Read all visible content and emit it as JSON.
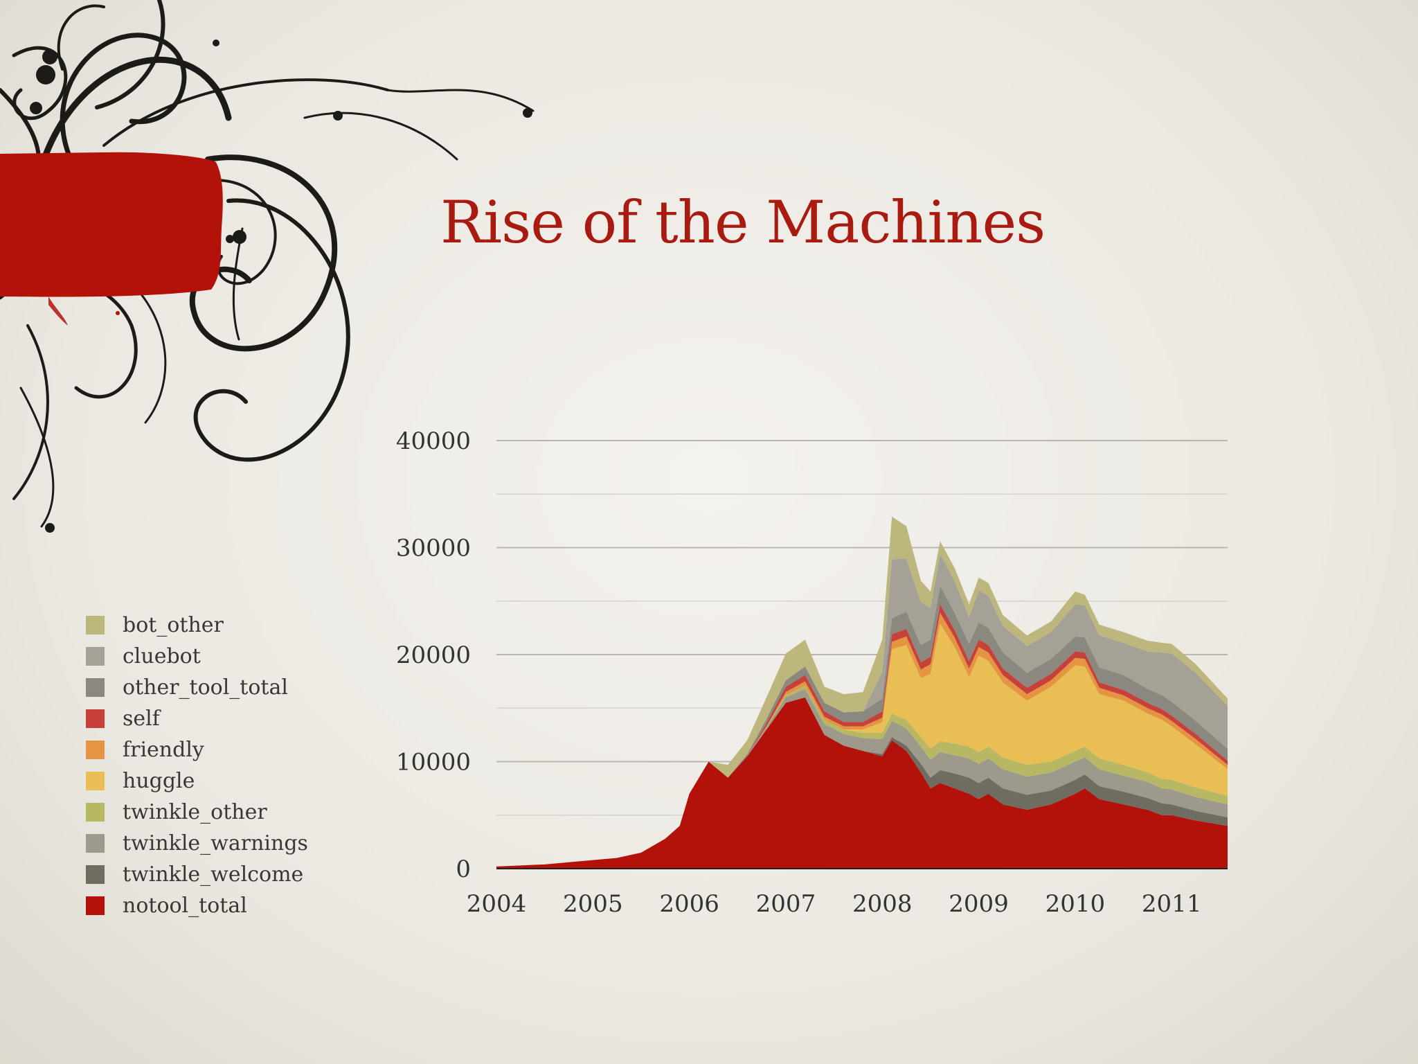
{
  "slide": {
    "title": "Rise of the Machines",
    "title_color": "#a91a10",
    "accent_color": "#b21209"
  },
  "legend": [
    {
      "label": "bot_other",
      "color": "#bdb77e"
    },
    {
      "label": "cluebot",
      "color": "#a5a196"
    },
    {
      "label": "other_tool_total",
      "color": "#8b887f"
    },
    {
      "label": "self",
      "color": "#c5413a"
    },
    {
      "label": "friendly",
      "color": "#e59442"
    },
    {
      "label": "huggle",
      "color": "#e9be55"
    },
    {
      "label": "twinkle_other",
      "color": "#b8b864"
    },
    {
      "label": "twinkle_warnings",
      "color": "#9d9a8c"
    },
    {
      "label": "twinkle_welcome",
      "color": "#6f6c62"
    },
    {
      "label": "notool_total",
      "color": "#b21209"
    }
  ],
  "chart_data": {
    "type": "area",
    "stacked": true,
    "title": "",
    "xlabel": "",
    "ylabel": "",
    "xlim": [
      2004.0,
      2011.58
    ],
    "ylim": [
      0,
      40000
    ],
    "yticks": [
      0,
      10000,
      20000,
      30000,
      40000
    ],
    "xticks": [
      2004,
      2005,
      2006,
      2007,
      2008,
      2009,
      2010,
      2011
    ],
    "grid": true,
    "legend_position": "left",
    "x": [
      2004.0,
      2004.25,
      2004.5,
      2004.75,
      2005.0,
      2005.25,
      2005.5,
      2005.75,
      2005.9,
      2006.0,
      2006.2,
      2006.4,
      2006.6,
      2006.8,
      2007.0,
      2007.2,
      2007.4,
      2007.6,
      2007.8,
      2008.0,
      2008.1,
      2008.25,
      2008.4,
      2008.5,
      2008.6,
      2008.75,
      2008.9,
      2009.0,
      2009.1,
      2009.25,
      2009.5,
      2009.75,
      2010.0,
      2010.1,
      2010.25,
      2010.5,
      2010.75,
      2010.9,
      2011.0,
      2011.25,
      2011.58
    ],
    "series": [
      {
        "name": "notool_total",
        "values": [
          200,
          300,
          400,
          600,
          800,
          1000,
          1500,
          2800,
          4000,
          7000,
          10000,
          8500,
          10500,
          13000,
          15500,
          16000,
          12500,
          11500,
          11000,
          10500,
          12000,
          11000,
          9000,
          7500,
          8000,
          7500,
          7000,
          6500,
          7000,
          6000,
          5500,
          6000,
          7000,
          7500,
          6500,
          6000,
          5500,
          5000,
          5000,
          4500,
          4000
        ]
      },
      {
        "name": "twinkle_welcome",
        "values": [
          0,
          0,
          0,
          0,
          0,
          0,
          0,
          0,
          0,
          0,
          0,
          0,
          0,
          0,
          0,
          0,
          0,
          0,
          0,
          200,
          300,
          500,
          800,
          1000,
          1200,
          1400,
          1500,
          1500,
          1500,
          1500,
          1400,
          1300,
          1300,
          1300,
          1200,
          1200,
          1100,
          1100,
          1000,
          900,
          800
        ]
      },
      {
        "name": "twinkle_warnings",
        "values": [
          0,
          0,
          0,
          0,
          0,
          0,
          0,
          0,
          0,
          0,
          0,
          0,
          0,
          200,
          500,
          800,
          1000,
          1100,
          1200,
          1400,
          1500,
          1600,
          1600,
          1700,
          1700,
          1700,
          1800,
          1800,
          1800,
          1800,
          1700,
          1700,
          1700,
          1600,
          1600,
          1500,
          1500,
          1400,
          1400,
          1300,
          1200
        ]
      },
      {
        "name": "twinkle_other",
        "values": [
          0,
          0,
          0,
          0,
          0,
          0,
          0,
          0,
          0,
          0,
          0,
          0,
          0,
          100,
          200,
          300,
          400,
          400,
          500,
          600,
          700,
          800,
          900,
          1000,
          1000,
          1100,
          1100,
          1100,
          1100,
          1100,
          1100,
          1000,
          1000,
          1000,
          1000,
          1000,
          900,
          900,
          900,
          900,
          800
        ]
      },
      {
        "name": "huggle",
        "values": [
          0,
          0,
          0,
          0,
          0,
          0,
          0,
          0,
          0,
          0,
          0,
          0,
          0,
          0,
          0,
          0,
          0,
          0,
          300,
          1000,
          6000,
          7000,
          5500,
          7000,
          11000,
          9000,
          6500,
          9000,
          8000,
          7000,
          6000,
          7000,
          8000,
          7500,
          6000,
          6000,
          5500,
          5500,
          5000,
          4000,
          2500
        ]
      },
      {
        "name": "friendly",
        "values": [
          0,
          0,
          0,
          0,
          0,
          0,
          0,
          0,
          0,
          0,
          0,
          0,
          0,
          0,
          300,
          400,
          300,
          300,
          300,
          400,
          700,
          800,
          800,
          900,
          1000,
          900,
          800,
          800,
          800,
          700,
          600,
          600,
          700,
          700,
          600,
          500,
          500,
          500,
          500,
          500,
          400
        ]
      },
      {
        "name": "self",
        "values": [
          0,
          0,
          0,
          0,
          0,
          0,
          0,
          0,
          0,
          0,
          0,
          0,
          0,
          300,
          500,
          600,
          500,
          400,
          400,
          600,
          700,
          700,
          700,
          700,
          800,
          700,
          700,
          700,
          700,
          600,
          600,
          600,
          600,
          600,
          500,
          500,
          500,
          500,
          500,
          500,
          400
        ]
      },
      {
        "name": "other_tool_total",
        "values": [
          0,
          0,
          0,
          0,
          0,
          0,
          0,
          0,
          0,
          0,
          0,
          0,
          200,
          400,
          600,
          800,
          800,
          900,
          1000,
          1200,
          1500,
          1600,
          1600,
          1600,
          1700,
          1600,
          1600,
          1600,
          1600,
          1500,
          1400,
          1400,
          1400,
          1400,
          1400,
          1400,
          1300,
          1300,
          1300,
          1200,
          1100
        ]
      },
      {
        "name": "cluebot",
        "values": [
          0,
          0,
          0,
          0,
          0,
          0,
          0,
          0,
          0,
          0,
          0,
          0,
          0,
          0,
          0,
          0,
          0,
          0,
          0,
          2500,
          5500,
          5000,
          4000,
          3000,
          3000,
          3000,
          2500,
          3000,
          3000,
          2500,
          2500,
          2500,
          3000,
          3000,
          3000,
          3000,
          3500,
          4000,
          4500,
          4500,
          4000
        ]
      },
      {
        "name": "bot_other",
        "values": [
          0,
          0,
          0,
          0,
          0,
          0,
          0,
          0,
          0,
          0,
          0,
          1200,
          1300,
          2000,
          2500,
          2500,
          1500,
          1700,
          1800,
          3000,
          4000,
          3000,
          2000,
          1500,
          1200,
          1200,
          1200,
          1200,
          1200,
          1000,
          1000,
          1000,
          1200,
          1000,
          1000,
          1000,
          1000,
          900,
          900,
          800,
          700
        ]
      }
    ]
  }
}
